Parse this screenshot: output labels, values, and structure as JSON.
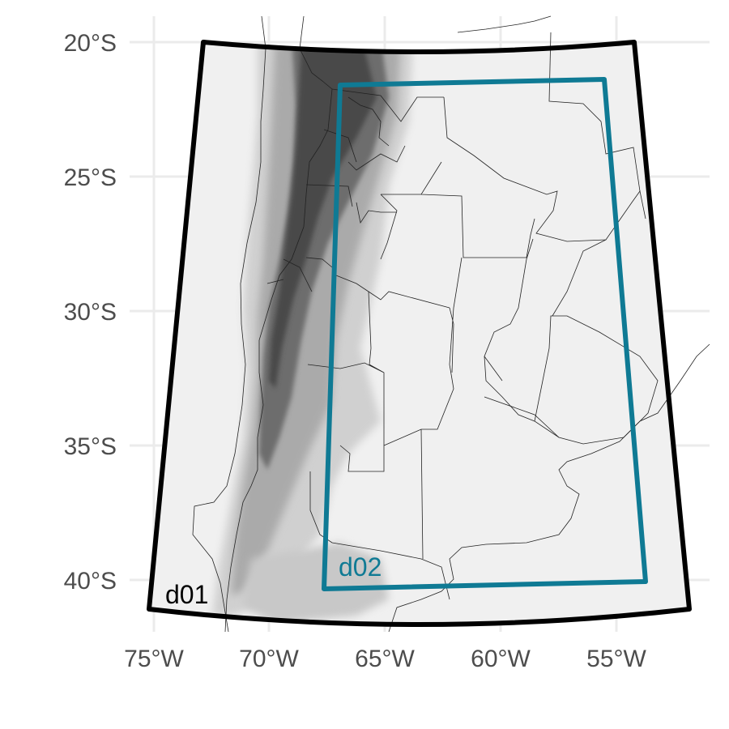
{
  "map": {
    "lat_labels": [
      "20°S",
      "25°S",
      "30°S",
      "35°S",
      "40°S"
    ],
    "lon_labels": [
      "75°W",
      "70°W",
      "65°W",
      "60°W",
      "55°W"
    ],
    "domains": [
      {
        "name": "d01",
        "color": "#000000"
      },
      {
        "name": "d02",
        "color": "#0f7a94"
      }
    ],
    "colors": {
      "land": "#f0f0f0",
      "grid": "#ebebeb",
      "terrain_light": "#cfcfcf",
      "terrain_mid": "#9a9a9a",
      "terrain_dark": "#4a4a4a"
    }
  }
}
